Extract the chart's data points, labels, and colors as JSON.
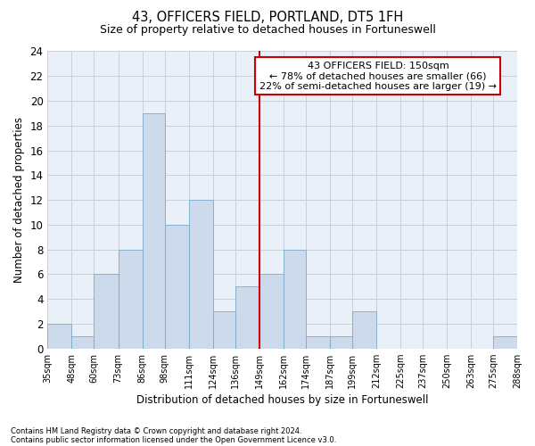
{
  "title": "43, OFFICERS FIELD, PORTLAND, DT5 1FH",
  "subtitle": "Size of property relative to detached houses in Fortuneswell",
  "xlabel": "Distribution of detached houses by size in Fortuneswell",
  "ylabel": "Number of detached properties",
  "bar_color": "#ccdaeb",
  "bar_edge_color": "#7aaac8",
  "grid_color": "#c8d0dc",
  "background_color": "#eaf0f8",
  "vline_color": "#cc0000",
  "bin_edges": [
    35,
    48,
    60,
    73,
    86,
    98,
    111,
    124,
    136,
    149,
    162,
    174,
    187,
    199,
    212,
    225,
    237,
    250,
    263,
    275,
    288
  ],
  "bar_heights": [
    2,
    1,
    6,
    8,
    19,
    10,
    12,
    3,
    5,
    6,
    8,
    1,
    1,
    3,
    0,
    0,
    0,
    0,
    0,
    1
  ],
  "tick_labels": [
    "35sqm",
    "48sqm",
    "60sqm",
    "73sqm",
    "86sqm",
    "98sqm",
    "111sqm",
    "124sqm",
    "136sqm",
    "149sqm",
    "162sqm",
    "174sqm",
    "187sqm",
    "199sqm",
    "212sqm",
    "225sqm",
    "237sqm",
    "250sqm",
    "263sqm",
    "275sqm",
    "288sqm"
  ],
  "ylim": [
    0,
    24
  ],
  "yticks": [
    0,
    2,
    4,
    6,
    8,
    10,
    12,
    14,
    16,
    18,
    20,
    22,
    24
  ],
  "property_size": 150,
  "vline_bin_index": 9,
  "annotation_title": "43 OFFICERS FIELD: 150sqm",
  "annotation_line1": "← 78% of detached houses are smaller (66)",
  "annotation_line2": "22% of semi-detached houses are larger (19) →",
  "annotation_box_color": "#ffffff",
  "annotation_box_edge": "#cc0000",
  "footnote1": "Contains HM Land Registry data © Crown copyright and database right 2024.",
  "footnote2": "Contains public sector information licensed under the Open Government Licence v3.0."
}
